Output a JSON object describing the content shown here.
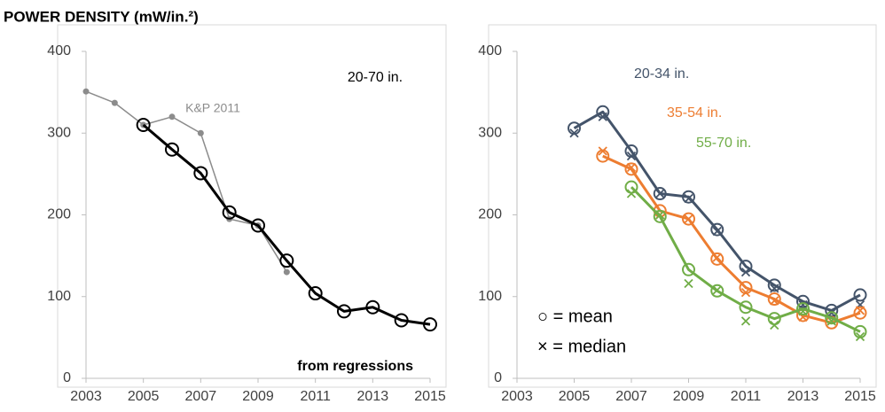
{
  "chart_data": [
    {
      "type": "line",
      "title": "POWER DENSITY (mW/in.²)",
      "xlim": [
        2003,
        2015
      ],
      "xticks": [
        2003,
        2005,
        2007,
        2009,
        2011,
        2013,
        2015
      ],
      "ylim": [
        0,
        400
      ],
      "yticks": [
        0,
        100,
        200,
        300,
        400
      ],
      "annotations": [
        {
          "text": "20-70 in.",
          "color": "#000000"
        },
        {
          "text": "K&P 2011",
          "color": "#8c8c8c"
        },
        {
          "text": "from regressions",
          "color": "#000000"
        }
      ],
      "series": [
        {
          "color": "#8c8c8c",
          "x": [
            2003,
            2004,
            2005,
            2006,
            2007,
            2008,
            2009,
            2010
          ],
          "values": [
            351,
            337,
            310,
            320,
            300,
            195,
            187,
            130
          ]
        },
        {
          "color": "#000000",
          "x": [
            2005,
            2006,
            2007,
            2008,
            2009,
            2010,
            2011,
            2012,
            2013,
            2014,
            2015
          ],
          "values": [
            310,
            280,
            251,
            203,
            187,
            144,
            104,
            82,
            87,
            71,
            66
          ]
        }
      ]
    },
    {
      "type": "line",
      "xlim": [
        2003,
        2015
      ],
      "xticks": [
        2003,
        2005,
        2007,
        2009,
        2011,
        2013,
        2015
      ],
      "ylim": [
        0,
        400
      ],
      "yticks": [
        0,
        100,
        200,
        300,
        400
      ],
      "annotations": [
        {
          "text": "○ = mean",
          "color": "#000000"
        },
        {
          "text": "× = median",
          "color": "#000000"
        }
      ],
      "series": [
        {
          "name": "20-34 in.",
          "color": "#44546a",
          "x": [
            2005,
            2006,
            2007,
            2008,
            2009,
            2010,
            2011,
            2012,
            2013,
            2014,
            2015
          ],
          "values": [
            306,
            326,
            278,
            226,
            222,
            182,
            137,
            114,
            94,
            83,
            102
          ],
          "median_values": [
            300,
            320,
            272,
            226,
            220,
            180,
            130,
            110,
            90,
            80,
            90
          ]
        },
        {
          "name": "35-54 in.",
          "color": "#ed7d31",
          "x": [
            2006,
            2007,
            2008,
            2009,
            2010,
            2011,
            2012,
            2013,
            2014,
            2015
          ],
          "values": [
            272,
            256,
            205,
            195,
            146,
            111,
            97,
            77,
            68,
            80
          ],
          "median_values": [
            278,
            258,
            200,
            195,
            148,
            105,
            95,
            75,
            70,
            83
          ]
        },
        {
          "name": "55-70 in.",
          "color": "#70ad47",
          "x": [
            2007,
            2008,
            2009,
            2010,
            2011,
            2012,
            2013,
            2014,
            2015
          ],
          "values": [
            234,
            198,
            133,
            107,
            87,
            73,
            85,
            74,
            57
          ],
          "median_values": [
            226,
            200,
            116,
            108,
            70,
            65,
            82,
            70,
            51
          ]
        }
      ]
    }
  ]
}
